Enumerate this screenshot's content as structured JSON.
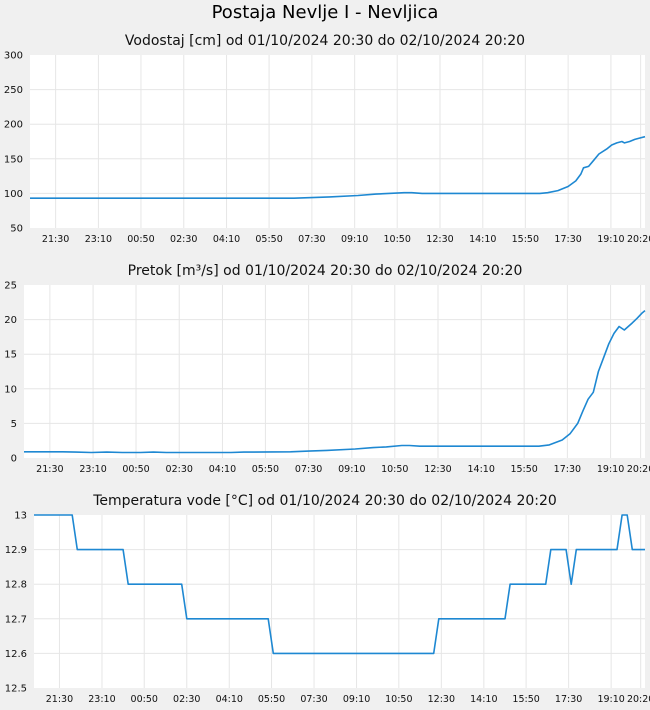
{
  "station_title": "Postaja Nevlje I - Nevljica",
  "colors": {
    "line": "#1e88d2",
    "plot_bg": "#ffffff",
    "page_bg": "#f0f0f0",
    "grid": "#e6e6e6"
  },
  "chart_data": [
    {
      "type": "line",
      "title": "Vodostaj [cm] od 01/10/2024 20:30 do 02/10/2024 20:20",
      "ylim": [
        50,
        300
      ],
      "yticks": [
        "300",
        "250",
        "200",
        "150",
        "100",
        "50"
      ],
      "xlim": [
        0,
        24
      ],
      "xticks": [
        {
          "label": "21:30",
          "t": 1.0
        },
        {
          "label": "23:10",
          "t": 2.67
        },
        {
          "label": "00:50",
          "t": 4.33
        },
        {
          "label": "02:30",
          "t": 6.0
        },
        {
          "label": "04:10",
          "t": 7.67
        },
        {
          "label": "05:50",
          "t": 9.33
        },
        {
          "label": "07:30",
          "t": 11.0
        },
        {
          "label": "09:10",
          "t": 12.67
        },
        {
          "label": "10:50",
          "t": 14.33
        },
        {
          "label": "12:30",
          "t": 16.0
        },
        {
          "label": "14:10",
          "t": 17.67
        },
        {
          "label": "15:50",
          "t": 19.33
        },
        {
          "label": "17:30",
          "t": 21.0
        },
        {
          "label": "19:10",
          "t": 22.67
        },
        {
          "label": "20:20",
          "t": 23.83
        }
      ],
      "grid": true,
      "series": [
        {
          "points": [
            [
              0,
              93
            ],
            [
              10.3,
              93
            ],
            [
              11.0,
              94
            ],
            [
              11.7,
              95
            ],
            [
              12.8,
              97
            ],
            [
              13.5,
              99
            ],
            [
              14.0,
              100
            ],
            [
              14.6,
              101
            ],
            [
              14.9,
              101
            ],
            [
              15.3,
              100
            ],
            [
              19.9,
              100
            ],
            [
              20.2,
              101
            ],
            [
              20.6,
              104
            ],
            [
              21.0,
              110
            ],
            [
              21.3,
              118
            ],
            [
              21.5,
              128
            ],
            [
              21.6,
              137
            ],
            [
              21.8,
              139
            ],
            [
              22.0,
              148
            ],
            [
              22.2,
              157
            ],
            [
              22.5,
              164
            ],
            [
              22.7,
              170
            ],
            [
              22.9,
              173
            ],
            [
              23.1,
              175
            ],
            [
              23.2,
              173
            ],
            [
              23.4,
              175
            ],
            [
              23.6,
              178
            ],
            [
              23.8,
              180
            ],
            [
              24.0,
              182
            ]
          ]
        }
      ]
    },
    {
      "type": "line",
      "title": "Pretok [m³/s] od 01/10/2024 20:30 do 02/10/2024 20:20",
      "ylim": [
        0,
        25
      ],
      "yticks": [
        "25",
        "20",
        "15",
        "10",
        "5",
        "0"
      ],
      "xlim": [
        0,
        24
      ],
      "xticks": [
        {
          "label": "21:30",
          "t": 1.0
        },
        {
          "label": "23:10",
          "t": 2.67
        },
        {
          "label": "00:50",
          "t": 4.33
        },
        {
          "label": "02:30",
          "t": 6.0
        },
        {
          "label": "04:10",
          "t": 7.67
        },
        {
          "label": "05:50",
          "t": 9.33
        },
        {
          "label": "07:30",
          "t": 11.0
        },
        {
          "label": "09:10",
          "t": 12.67
        },
        {
          "label": "10:50",
          "t": 14.33
        },
        {
          "label": "12:30",
          "t": 16.0
        },
        {
          "label": "14:10",
          "t": 17.67
        },
        {
          "label": "15:50",
          "t": 19.33
        },
        {
          "label": "17:30",
          "t": 21.0
        },
        {
          "label": "19:10",
          "t": 22.67
        },
        {
          "label": "20:20",
          "t": 23.83
        }
      ],
      "grid": true,
      "series": [
        {
          "points": [
            [
              0,
              0.9
            ],
            [
              1.5,
              0.9
            ],
            [
              2.0,
              0.85
            ],
            [
              2.6,
              0.8
            ],
            [
              3.2,
              0.85
            ],
            [
              3.8,
              0.8
            ],
            [
              4.5,
              0.8
            ],
            [
              5.0,
              0.85
            ],
            [
              5.5,
              0.8
            ],
            [
              8.0,
              0.8
            ],
            [
              8.5,
              0.85
            ],
            [
              10.3,
              0.9
            ],
            [
              11.0,
              1.0
            ],
            [
              11.7,
              1.1
            ],
            [
              12.8,
              1.3
            ],
            [
              13.5,
              1.5
            ],
            [
              14.0,
              1.6
            ],
            [
              14.6,
              1.8
            ],
            [
              14.9,
              1.8
            ],
            [
              15.3,
              1.7
            ],
            [
              19.9,
              1.7
            ],
            [
              20.3,
              1.9
            ],
            [
              20.8,
              2.6
            ],
            [
              21.1,
              3.5
            ],
            [
              21.4,
              5.0
            ],
            [
              21.6,
              6.8
            ],
            [
              21.8,
              8.5
            ],
            [
              22.0,
              9.5
            ],
            [
              22.2,
              12.5
            ],
            [
              22.4,
              14.5
            ],
            [
              22.6,
              16.5
            ],
            [
              22.8,
              18.0
            ],
            [
              23.0,
              19.0
            ],
            [
              23.2,
              18.5
            ],
            [
              23.5,
              19.5
            ],
            [
              23.7,
              20.2
            ],
            [
              23.9,
              21.0
            ],
            [
              24.0,
              21.3
            ]
          ]
        }
      ]
    },
    {
      "type": "line",
      "title": "Temperatura vode [°C] od 01/10/2024 20:30 do 02/10/2024 20:20",
      "ylim": [
        12.5,
        13
      ],
      "yticks": [
        "13",
        "12.9",
        "12.8",
        "12.7",
        "12.6",
        "12.5"
      ],
      "xlim": [
        0,
        24
      ],
      "xticks": [
        {
          "label": "21:30",
          "t": 1.0
        },
        {
          "label": "23:10",
          "t": 2.67
        },
        {
          "label": "00:50",
          "t": 4.33
        },
        {
          "label": "02:30",
          "t": 6.0
        },
        {
          "label": "04:10",
          "t": 7.67
        },
        {
          "label": "05:50",
          "t": 9.33
        },
        {
          "label": "07:30",
          "t": 11.0
        },
        {
          "label": "09:10",
          "t": 12.67
        },
        {
          "label": "10:50",
          "t": 14.33
        },
        {
          "label": "12:30",
          "t": 16.0
        },
        {
          "label": "14:10",
          "t": 17.67
        },
        {
          "label": "15:50",
          "t": 19.33
        },
        {
          "label": "17:30",
          "t": 21.0
        },
        {
          "label": "19:10",
          "t": 22.67
        },
        {
          "label": "20:20",
          "t": 23.83
        }
      ],
      "grid": true,
      "series": [
        {
          "points": [
            [
              0,
              13.0
            ],
            [
              1.5,
              13.0
            ],
            [
              1.7,
              12.9
            ],
            [
              3.5,
              12.9
            ],
            [
              3.7,
              12.8
            ],
            [
              5.8,
              12.8
            ],
            [
              6.0,
              12.7
            ],
            [
              9.2,
              12.7
            ],
            [
              9.4,
              12.6
            ],
            [
              15.7,
              12.6
            ],
            [
              15.9,
              12.7
            ],
            [
              18.5,
              12.7
            ],
            [
              18.7,
              12.8
            ],
            [
              20.1,
              12.8
            ],
            [
              20.3,
              12.9
            ],
            [
              20.9,
              12.9
            ],
            [
              21.1,
              12.8
            ],
            [
              21.3,
              12.9
            ],
            [
              22.9,
              12.9
            ],
            [
              23.1,
              13.0
            ],
            [
              23.3,
              13.0
            ],
            [
              23.5,
              12.9
            ],
            [
              24.0,
              12.9
            ]
          ]
        }
      ]
    }
  ]
}
